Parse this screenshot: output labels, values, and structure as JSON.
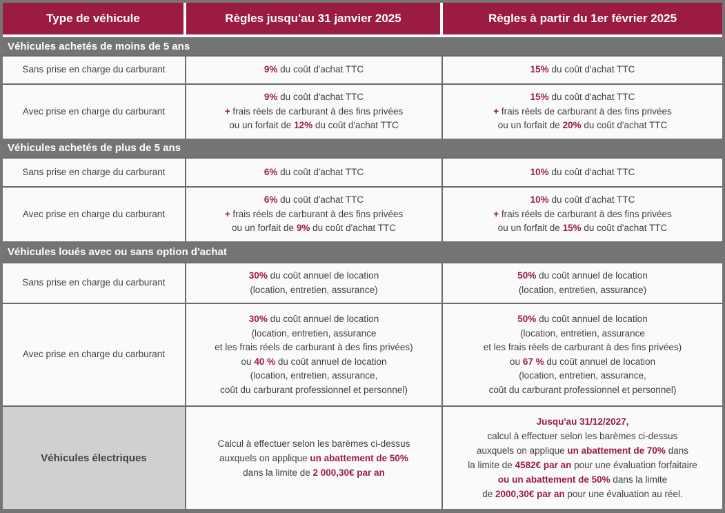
{
  "theme": {
    "accent": "#9B1C40",
    "header_bg": "#9B1C40",
    "band_bg": "#747474",
    "gray_cell_bg": "#D0D0D0",
    "frame_color": "#757575",
    "border_color": "#6B6B6B",
    "cell_bg": "#FAFAFA",
    "text_color": "#3F3F3F"
  },
  "header": {
    "col_type": "Type de véhicule",
    "col_until": "Règles jusqu'au 31 janvier 2025",
    "col_from": "Règles à partir du 1er février 2025"
  },
  "bands": {
    "s1": "Véhicules achetés de moins de 5 ans",
    "s2": "Véhicules achetés de plus de 5 ans",
    "s3": "Véhicules loués avec ou sans option d'achat"
  },
  "labels": {
    "sans": "Sans prise en charge du carburant",
    "avec": "Avec prise en charge du carburant",
    "electric": "Véhicules électriques"
  },
  "rows": {
    "r1": {
      "before": [
        [
          [
            "9%",
            1
          ],
          [
            " du coût d'achat TTC",
            0
          ]
        ]
      ],
      "after": [
        [
          [
            "15%",
            1
          ],
          [
            " du coût d'achat TTC",
            0
          ]
        ]
      ]
    },
    "r2": {
      "before": [
        [
          [
            "9%",
            1
          ],
          [
            " du coût d'achat TTC",
            0
          ]
        ],
        [
          [
            "+",
            1
          ],
          [
            " frais réels de carburant à des fins privées",
            0
          ]
        ],
        [
          [
            "ou un forfait de ",
            0
          ],
          [
            "12%",
            1
          ],
          [
            " du coût d'achat TTC",
            0
          ]
        ]
      ],
      "after": [
        [
          [
            "15%",
            1
          ],
          [
            " du coût d'achat TTC",
            0
          ]
        ],
        [
          [
            "+",
            1
          ],
          [
            " frais réels de carburant à des fins privées",
            0
          ]
        ],
        [
          [
            "ou un forfait de ",
            0
          ],
          [
            "20%",
            1
          ],
          [
            " du coût d'achat TTC",
            0
          ]
        ]
      ]
    },
    "r3": {
      "before": [
        [
          [
            "6%",
            1
          ],
          [
            " du coût d'achat TTC",
            0
          ]
        ]
      ],
      "after": [
        [
          [
            "10%",
            1
          ],
          [
            " du coût d'achat TTC",
            0
          ]
        ]
      ]
    },
    "r4": {
      "before": [
        [
          [
            "6%",
            1
          ],
          [
            " du coût d'achat TTC",
            0
          ]
        ],
        [
          [
            "+",
            1
          ],
          [
            " frais réels de carburant à des fins privées",
            0
          ]
        ],
        [
          [
            "ou un forfait de ",
            0
          ],
          [
            "9%",
            1
          ],
          [
            " du coût d'achat TTC",
            0
          ]
        ]
      ],
      "after": [
        [
          [
            "10%",
            1
          ],
          [
            " du coût d'achat TTC",
            0
          ]
        ],
        [
          [
            "+",
            1
          ],
          [
            " frais réels de carburant à des fins privées",
            0
          ]
        ],
        [
          [
            "ou un forfait de ",
            0
          ],
          [
            "15%",
            1
          ],
          [
            " du coût d'achat TTC",
            0
          ]
        ]
      ]
    },
    "r5": {
      "before": [
        [
          [
            "30%",
            1
          ],
          [
            " du coût annuel de location",
            0
          ]
        ],
        [
          [
            "(location, entretien, assurance)",
            0
          ]
        ]
      ],
      "after": [
        [
          [
            "50%",
            1
          ],
          [
            " du coût annuel de location",
            0
          ]
        ],
        [
          [
            "(location, entretien, assurance)",
            0
          ]
        ]
      ]
    },
    "r6": {
      "before": [
        [
          [
            "30%",
            1
          ],
          [
            " du coût annuel de location",
            0
          ]
        ],
        [
          [
            "(location, entretien, assurance",
            0
          ]
        ],
        [
          [
            "et les frais réels de carburant à des fins privées)",
            0
          ]
        ],
        [
          [
            "ou ",
            0
          ],
          [
            "40 %",
            1
          ],
          [
            " du coût annuel de location",
            0
          ]
        ],
        [
          [
            "(location, entretien, assurance,",
            0
          ]
        ],
        [
          [
            "coût du carburant professionnel et personnel)",
            0
          ]
        ]
      ],
      "after": [
        [
          [
            "50%",
            1
          ],
          [
            " du coût annuel de location",
            0
          ]
        ],
        [
          [
            "(location, entretien, assurance",
            0
          ]
        ],
        [
          [
            "et les frais réels de carburant à des fins privées)",
            0
          ]
        ],
        [
          [
            "ou ",
            0
          ],
          [
            "67 %",
            1
          ],
          [
            " du coût annuel de location",
            0
          ]
        ],
        [
          [
            "(location, entretien, assurance,",
            0
          ]
        ],
        [
          [
            "coût du carburant professionnel et personnel)",
            0
          ]
        ]
      ]
    },
    "r7": {
      "before": [
        [
          [
            "Calcul à effectuer selon les barèmes ci-dessus",
            0
          ]
        ],
        [
          [
            "auxquels on applique ",
            0
          ],
          [
            "un abattement de 50%",
            1
          ]
        ],
        [
          [
            "dans la limite de ",
            0
          ],
          [
            "2 000,30€ par an",
            1
          ]
        ]
      ],
      "after": [
        [
          [
            "Jusqu'au 31/12/2027,",
            1
          ]
        ],
        [
          [
            "calcul à effectuer selon les barèmes ci-dessus",
            0
          ]
        ],
        [
          [
            "auxquels on applique ",
            0
          ],
          [
            "un abattement de 70%",
            1
          ],
          [
            " dans",
            0
          ]
        ],
        [
          [
            "la limite de ",
            0
          ],
          [
            "4582€ par an",
            1
          ],
          [
            " pour une évaluation forfaitaire",
            0
          ]
        ],
        [
          [
            "ou un abattement de 50%",
            1
          ],
          [
            " dans la limite",
            0
          ]
        ],
        [
          [
            "de ",
            0
          ],
          [
            "2000,30€ par an",
            1
          ],
          [
            " pour une évaluation au réel.",
            0
          ]
        ]
      ]
    }
  }
}
